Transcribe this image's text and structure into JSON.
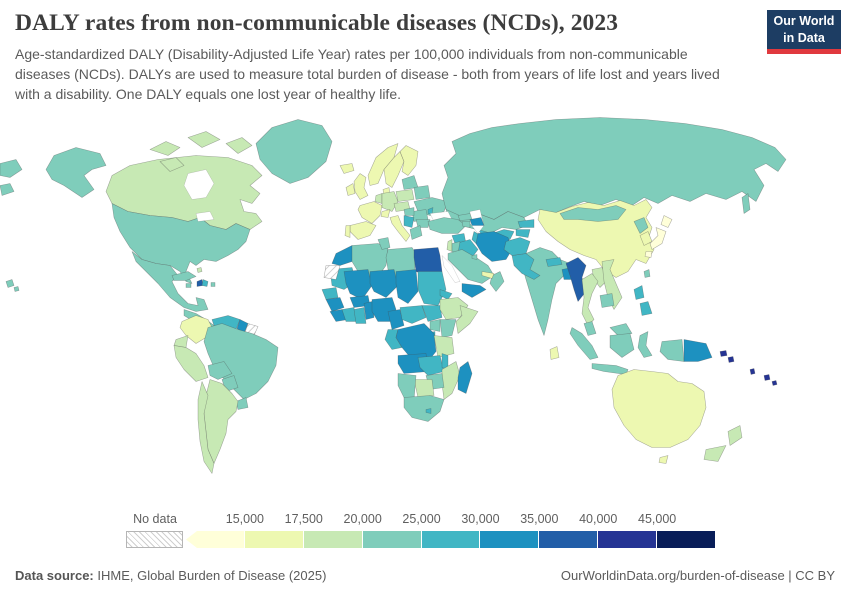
{
  "page": {
    "title": "DALY rates from non-communicable diseases (NCDs), 2023",
    "subtitle": "Age-standardized DALY (Disability-Adjusted Life Year) rates per 100,000 individuals from non-communicable diseases (NCDs). DALYs are used to measure total burden of disease - both from years of life lost and years lived with a disability. One DALY equals one lost year of healthy life."
  },
  "logo": {
    "line1": "Our World",
    "line2": "in Data",
    "bg_color": "#1d3d63",
    "accent_color": "#e0393e"
  },
  "legend": {
    "no_data_label": "No data",
    "tick_labels": [
      "15,000",
      "17,500",
      "20,000",
      "25,000",
      "30,000",
      "35,000",
      "40,000",
      "45,000"
    ]
  },
  "footer": {
    "source_label": "Data source:",
    "source_value": " IHME, Global Burden of Disease (2025)",
    "credit": "OurWorldinData.org/burden-of-disease | CC BY"
  },
  "chart_data": {
    "type": "choropleth",
    "title": "DALY rates from non-communicable diseases (NCDs), 2023",
    "unit": "Age-standardized DALYs per 100,000 individuals",
    "year": 2023,
    "projection": "world",
    "no_data_label": "No data",
    "bins": [
      {
        "label": "<15,000",
        "color": "#ffffd9"
      },
      {
        "label": "15,000-17,500",
        "color": "#edf8b1"
      },
      {
        "label": "17,500-20,000",
        "color": "#c7e9b4"
      },
      {
        "label": "20,000-25,000",
        "color": "#7fcdbb"
      },
      {
        "label": "25,000-30,000",
        "color": "#41b6c4"
      },
      {
        "label": "30,000-35,000",
        "color": "#1d91c0"
      },
      {
        "label": "35,000-40,000",
        "color": "#225ea8"
      },
      {
        "label": "40,000-45,000",
        "color": "#253494"
      },
      {
        "label": ">45,000",
        "color": "#081d58"
      }
    ],
    "regions": {
      "Japan": "<15,000",
      "China": "15,000-17,500",
      "South Korea": "15,000-17,500",
      "Australia": "15,000-17,500",
      "Colombia": "15,000-17,500",
      "France": "15,000-17,500",
      "Spain": "15,000-17,500",
      "Portugal": "15,000-17,500",
      "United Kingdom": "15,000-17,500",
      "Ireland": "15,000-17,500",
      "Iceland": "15,000-17,500",
      "Norway": "15,000-17,500",
      "Sweden": "15,000-17,500",
      "Finland": "15,000-17,500",
      "Denmark": "15,000-17,500",
      "Switzerland": "15,000-17,500",
      "Italy": "15,000-17,500",
      "United Arab Emirates": "15,000-17,500",
      "Qatar": "15,000-17,500",
      "Sri Lanka": "15,000-17,500",
      "Canada": "17,500-20,000",
      "Chile": "17,500-20,000",
      "Argentina": "17,500-20,000",
      "Ecuador": "17,500-20,000",
      "Peru": "17,500-20,000",
      "New Zealand": "17,500-20,000",
      "Germany": "17,500-20,000",
      "Netherlands": "17,500-20,000",
      "Austria": "17,500-20,000",
      "Poland": "17,500-20,000",
      "Czechia": "17,500-20,000",
      "Ethiopia": "17,500-20,000",
      "Somalia": "17,500-20,000",
      "Tanzania": "17,500-20,000",
      "Mozambique": "17,500-20,000",
      "Botswana": "17,500-20,000",
      "Thailand": "17,500-20,000",
      "Laos": "17,500-20,000",
      "Vietnam": "17,500-20,000",
      "Israel": "17,500-20,000",
      "Bahamas": "17,500-20,000",
      "United States": "20,000-25,000",
      "Greenland": "20,000-25,000",
      "Mexico": "20,000-25,000",
      "Central America": "20,000-25,000",
      "Cuba": "20,000-25,000",
      "Jamaica": "20,000-25,000",
      "Puerto Rico": "20,000-25,000",
      "Brazil": "20,000-25,000",
      "Bolivia": "20,000-25,000",
      "Paraguay": "20,000-25,000",
      "Uruguay": "20,000-25,000",
      "Russia": "20,000-25,000",
      "Kazakhstan": "20,000-25,000",
      "Mongolia": "20,000-25,000",
      "North Korea": "20,000-25,000",
      "Taiwan": "20,000-25,000",
      "Turkey": "20,000-25,000",
      "Georgia": "20,000-25,000",
      "Armenia": "20,000-25,000",
      "Saudi Arabia": "20,000-25,000",
      "Oman": "20,000-25,000",
      "Kuwait": "20,000-25,000",
      "Jordan": "20,000-25,000",
      "Algeria": "20,000-25,000",
      "Tunisia": "20,000-25,000",
      "Libya": "20,000-25,000",
      "Kenya": "20,000-25,000",
      "Uganda": "20,000-25,000",
      "Namibia": "20,000-25,000",
      "Zimbabwe": "20,000-25,000",
      "South Africa": "20,000-25,000",
      "India": "20,000-25,000",
      "Cambodia": "20,000-25,000",
      "Indonesia": "20,000-25,000",
      "Malaysia": "20,000-25,000",
      "Ukraine": "20,000-25,000",
      "Belarus": "20,000-25,000",
      "Baltic states": "20,000-25,000",
      "Romania": "20,000-25,000",
      "Hungary": "20,000-25,000",
      "Bulgaria": "20,000-25,000",
      "Greece": "20,000-25,000",
      "Venezuela": "25,000-30,000",
      "Dominican Republic": "25,000-30,000",
      "Moldova": "25,000-30,000",
      "Serbia": "25,000-30,000",
      "Uzbekistan": "25,000-30,000",
      "Turkmenistan": "25,000-30,000",
      "Kyrgyzstan": "25,000-30,000",
      "Tajikistan": "25,000-30,000",
      "Afghanistan": "25,000-30,000",
      "Pakistan": "25,000-30,000",
      "Nepal": "25,000-30,000",
      "Syria": "25,000-30,000",
      "Iraq": "25,000-30,000",
      "Mauritania": "25,000-30,000",
      "Senegal": "25,000-30,000",
      "Cote d'Ivoire": "25,000-30,000",
      "Ghana": "25,000-30,000",
      "Sudan": "25,000-30,000",
      "Eritrea": "25,000-30,000",
      "South Sudan": "25,000-30,000",
      "Central African Republic": "25,000-30,000",
      "Gabon": "25,000-30,000",
      "Zambia": "25,000-30,000",
      "Malawi": "25,000-30,000",
      "Rwanda": "25,000-30,000",
      "Lesotho": "25,000-30,000",
      "Philippines": "25,000-30,000",
      "Morocco": "30,000-35,000",
      "Mali": "30,000-35,000",
      "Niger": "30,000-35,000",
      "Chad": "30,000-35,000",
      "Nigeria": "30,000-35,000",
      "Burkina Faso": "30,000-35,000",
      "Guinea": "30,000-35,000",
      "Sierra Leone": "30,000-35,000",
      "Liberia": "30,000-35,000",
      "Benin": "30,000-35,000",
      "Cameroon": "30,000-35,000",
      "Democratic Republic of Congo": "30,000-35,000",
      "Angola": "30,000-35,000",
      "Madagascar": "30,000-35,000",
      "Iran": "30,000-35,000",
      "Azerbaijan": "30,000-35,000",
      "Yemen": "30,000-35,000",
      "Guyana": "30,000-35,000",
      "Bangladesh": "30,000-35,000",
      "Papua New Guinea": "30,000-35,000",
      "Egypt": "35,000-40,000",
      "Myanmar": "35,000-40,000",
      "Haiti": "35,000-40,000",
      "Fiji": "40,000-45,000",
      "Solomon Islands": "40,000-45,000",
      "Vanuatu": "40,000-45,000",
      "Suriname": "No data",
      "Western Sahara": "No data"
    }
  }
}
